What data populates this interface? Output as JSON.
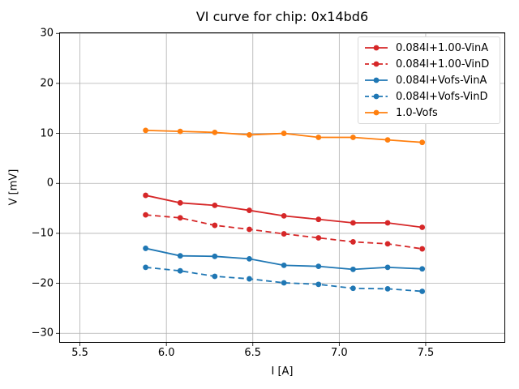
{
  "title": "VI curve for chip: 0x14bd6",
  "colors": {
    "background": "#ffffff",
    "grid": "#b0b0b0",
    "spine": "#000000",
    "legend_border": "#d9d9d9",
    "red": "#d62728",
    "blue": "#1f77b4",
    "orange": "#ff7f0e"
  },
  "chart_data": {
    "type": "line",
    "title": "VI curve for chip: 0x14bd6",
    "xlabel": "I [A]",
    "ylabel": "V [mV]",
    "xlim": [
      5.38,
      7.96
    ],
    "ylim": [
      -31.9,
      30.2
    ],
    "xticks": [
      5.5,
      6.0,
      6.5,
      7.0,
      7.5
    ],
    "xtick_labels": [
      "5.5",
      "6.0",
      "6.5",
      "7.0",
      "7.5"
    ],
    "yticks": [
      30,
      20,
      10,
      0,
      -10,
      -20,
      -30
    ],
    "ytick_labels": [
      "30",
      "20",
      "10",
      "0",
      "−10",
      "−20",
      "−30"
    ],
    "grid": true,
    "legend_position": "upper right",
    "marker": "circle",
    "x": [
      5.88,
      6.08,
      6.28,
      6.48,
      6.68,
      6.88,
      7.08,
      7.28,
      7.48
    ],
    "series": [
      {
        "name": "0.084I+1.00-VinA",
        "color": "#d62728",
        "linestyle": "solid",
        "values": [
          -2.4,
          -3.9,
          -4.4,
          -5.4,
          -6.5,
          -7.2,
          -7.9,
          -7.9,
          -8.8
        ]
      },
      {
        "name": "0.084I+1.00-VinD",
        "color": "#d62728",
        "linestyle": "dashed",
        "values": [
          -6.3,
          -6.9,
          -8.4,
          -9.2,
          -10.1,
          -10.9,
          -11.7,
          -12.1,
          -13.1
        ]
      },
      {
        "name": "0.084I+Vofs-VinA",
        "color": "#1f77b4",
        "linestyle": "solid",
        "values": [
          -13.0,
          -14.5,
          -14.6,
          -15.1,
          -16.4,
          -16.6,
          -17.2,
          -16.8,
          -17.1
        ]
      },
      {
        "name": "0.084I+Vofs-VinD",
        "color": "#1f77b4",
        "linestyle": "dashed",
        "values": [
          -16.8,
          -17.5,
          -18.6,
          -19.1,
          -19.9,
          -20.2,
          -21.0,
          -21.1,
          -21.6
        ]
      },
      {
        "name": "1.0-Vofs",
        "color": "#ff7f0e",
        "linestyle": "solid",
        "values": [
          10.6,
          10.4,
          10.2,
          9.7,
          10.0,
          9.2,
          9.2,
          8.7,
          8.2
        ]
      }
    ]
  }
}
